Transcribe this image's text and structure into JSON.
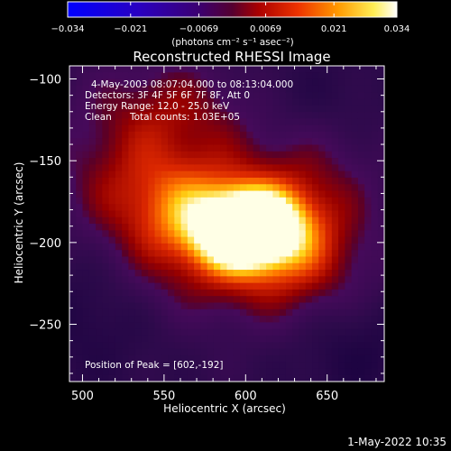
{
  "chart_data": {
    "type": "heatmap",
    "title": "Reconstructed RHESSI Image",
    "xlabel": "Heliocentric X (arcsec)",
    "ylabel": "Heliocentric Y (arcsec)",
    "xlim": [
      492,
      685
    ],
    "ylim": [
      -285,
      -92
    ],
    "x_ticks": [
      500,
      550,
      600,
      650
    ],
    "y_ticks": [
      -100,
      -150,
      -200,
      -250
    ],
    "colorbar": {
      "colormap": "RHESSI purple-red-yellow-white",
      "range": [
        -0.034,
        0.034
      ],
      "ticks": [
        "-0.034",
        "-0.021",
        "-0.0069",
        "0.0069",
        "0.021",
        "0.034"
      ],
      "unit_label": "(photons cm⁻² s⁻¹ asec⁻²)",
      "colors": [
        "#0000ff",
        "#2000d0",
        "#40009a",
        "#60005a",
        "#5a0070",
        "#8a0000",
        "#d02000",
        "#ff7a00",
        "#ffd000",
        "#ffffe0"
      ]
    },
    "annotations": {
      "time_range": "4-May-2003 08:07:04.000 to 08:13:04.000",
      "detectors": "Detectors: 3F 4F 5F 6F 7F 8F, Att 0",
      "energy": "Energy Range: 12.0 - 25.0 keV",
      "method": "Clean",
      "total_counts": "Total counts: 1.03E+05",
      "peak": "Position of Peak = [602,-192]"
    },
    "peak_position": [
      602,
      -192
    ],
    "footer_date": "1-May-2022 10:35"
  }
}
